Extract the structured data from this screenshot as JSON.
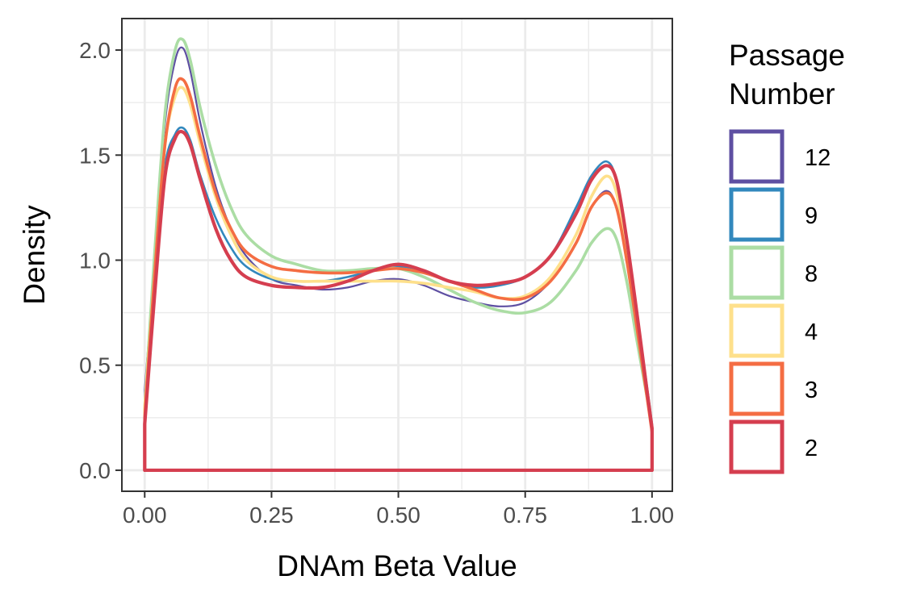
{
  "chart_data": {
    "type": "line",
    "subtype": "density",
    "xlabel": "DNAm Beta Value",
    "ylabel": "Density",
    "xlim": [
      -0.045,
      1.04
    ],
    "ylim": [
      -0.1,
      2.15
    ],
    "x_ticks": [
      "0.00",
      "0.25",
      "0.50",
      "0.75",
      "1.00"
    ],
    "x_tick_values": [
      0,
      0.25,
      0.5,
      0.75,
      1.0
    ],
    "y_ticks": [
      "0.0",
      "0.5",
      "1.0",
      "1.5",
      "2.0"
    ],
    "y_tick_values": [
      0,
      0.5,
      1.0,
      1.5,
      2.0
    ],
    "grid": true,
    "legend_title_lines": [
      "Passage",
      "Number"
    ],
    "legend_position": "right",
    "series": [
      {
        "name": "12",
        "color": "#5E4FA2",
        "width": 2.2,
        "x": [
          0.0,
          0.02,
          0.04,
          0.06,
          0.075,
          0.09,
          0.11,
          0.14,
          0.17,
          0.2,
          0.25,
          0.3,
          0.35,
          0.4,
          0.45,
          0.5,
          0.55,
          0.6,
          0.65,
          0.7,
          0.75,
          0.8,
          0.85,
          0.88,
          0.91,
          0.93,
          0.95,
          0.97,
          0.99,
          1.0
        ],
        "y": [
          0.38,
          1.0,
          1.65,
          1.95,
          2.01,
          1.9,
          1.65,
          1.35,
          1.15,
          1.02,
          0.91,
          0.88,
          0.86,
          0.87,
          0.9,
          0.91,
          0.88,
          0.83,
          0.8,
          0.78,
          0.8,
          0.9,
          1.08,
          1.25,
          1.33,
          1.25,
          1.0,
          0.7,
          0.38,
          0.2
        ]
      },
      {
        "name": "9",
        "color": "#3288BD",
        "width": 2.6,
        "x": [
          0.0,
          0.02,
          0.04,
          0.06,
          0.075,
          0.09,
          0.11,
          0.14,
          0.17,
          0.2,
          0.25,
          0.3,
          0.35,
          0.4,
          0.45,
          0.5,
          0.55,
          0.6,
          0.65,
          0.7,
          0.75,
          0.8,
          0.85,
          0.88,
          0.91,
          0.93,
          0.95,
          0.97,
          0.99,
          1.0
        ],
        "y": [
          0.32,
          0.95,
          1.45,
          1.6,
          1.63,
          1.57,
          1.4,
          1.2,
          1.06,
          0.97,
          0.91,
          0.9,
          0.9,
          0.92,
          0.95,
          0.97,
          0.95,
          0.9,
          0.87,
          0.88,
          0.92,
          1.02,
          1.25,
          1.4,
          1.47,
          1.38,
          1.1,
          0.75,
          0.4,
          0.22
        ]
      },
      {
        "name": "8",
        "color": "#ABDDA4",
        "width": 3.6,
        "x": [
          0.0,
          0.02,
          0.04,
          0.06,
          0.075,
          0.09,
          0.11,
          0.14,
          0.17,
          0.2,
          0.25,
          0.3,
          0.35,
          0.4,
          0.45,
          0.5,
          0.55,
          0.6,
          0.65,
          0.7,
          0.75,
          0.8,
          0.85,
          0.88,
          0.91,
          0.93,
          0.95,
          0.97,
          0.99,
          1.0
        ],
        "y": [
          0.3,
          1.05,
          1.7,
          2.0,
          2.05,
          1.95,
          1.72,
          1.45,
          1.25,
          1.12,
          1.02,
          0.98,
          0.95,
          0.95,
          0.96,
          0.96,
          0.92,
          0.86,
          0.8,
          0.76,
          0.75,
          0.8,
          0.95,
          1.08,
          1.15,
          1.1,
          0.9,
          0.62,
          0.35,
          0.2
        ]
      },
      {
        "name": "4",
        "color": "#FEE08B",
        "width": 3.6,
        "x": [
          0.0,
          0.02,
          0.04,
          0.06,
          0.075,
          0.09,
          0.11,
          0.14,
          0.17,
          0.2,
          0.25,
          0.3,
          0.35,
          0.4,
          0.45,
          0.5,
          0.55,
          0.6,
          0.65,
          0.7,
          0.75,
          0.8,
          0.85,
          0.88,
          0.91,
          0.93,
          0.95,
          0.97,
          0.99,
          1.0
        ],
        "y": [
          0.3,
          0.95,
          1.55,
          1.78,
          1.82,
          1.74,
          1.55,
          1.3,
          1.12,
          1.0,
          0.92,
          0.9,
          0.9,
          0.9,
          0.9,
          0.9,
          0.89,
          0.87,
          0.85,
          0.82,
          0.83,
          0.92,
          1.12,
          1.3,
          1.4,
          1.32,
          1.05,
          0.72,
          0.38,
          0.2
        ]
      },
      {
        "name": "3",
        "color": "#F46D43",
        "width": 3.6,
        "x": [
          0.0,
          0.02,
          0.04,
          0.06,
          0.075,
          0.09,
          0.11,
          0.14,
          0.17,
          0.2,
          0.25,
          0.3,
          0.35,
          0.4,
          0.45,
          0.5,
          0.55,
          0.6,
          0.65,
          0.7,
          0.75,
          0.8,
          0.85,
          0.88,
          0.91,
          0.93,
          0.95,
          0.97,
          0.99,
          1.0
        ],
        "y": [
          0.25,
          0.95,
          1.55,
          1.82,
          1.86,
          1.78,
          1.58,
          1.32,
          1.15,
          1.04,
          0.97,
          0.95,
          0.94,
          0.94,
          0.95,
          0.96,
          0.94,
          0.9,
          0.86,
          0.82,
          0.82,
          0.9,
          1.08,
          1.25,
          1.32,
          1.25,
          1.0,
          0.68,
          0.35,
          0.18
        ]
      },
      {
        "name": "2",
        "color": "#D53E4F",
        "width": 4.2,
        "x": [
          0.0,
          0.02,
          0.04,
          0.06,
          0.075,
          0.09,
          0.11,
          0.14,
          0.17,
          0.2,
          0.25,
          0.3,
          0.35,
          0.4,
          0.45,
          0.5,
          0.55,
          0.6,
          0.65,
          0.7,
          0.75,
          0.8,
          0.85,
          0.88,
          0.91,
          0.93,
          0.95,
          0.97,
          0.99,
          1.0
        ],
        "y": [
          0.22,
          0.85,
          1.4,
          1.58,
          1.61,
          1.55,
          1.38,
          1.15,
          1.0,
          0.92,
          0.88,
          0.87,
          0.87,
          0.9,
          0.95,
          0.98,
          0.95,
          0.9,
          0.88,
          0.89,
          0.92,
          1.02,
          1.22,
          1.38,
          1.45,
          1.38,
          1.1,
          0.75,
          0.38,
          0.2
        ]
      }
    ]
  }
}
